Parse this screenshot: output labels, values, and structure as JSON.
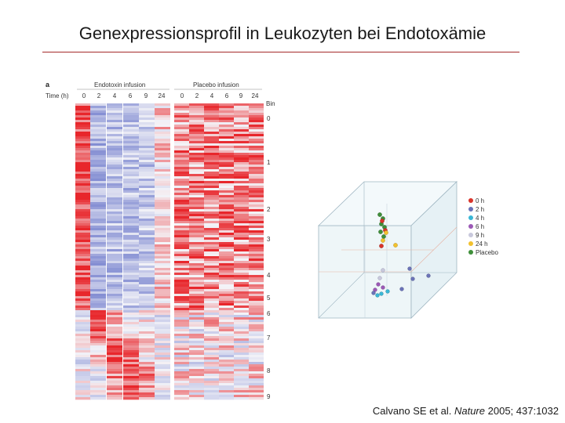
{
  "slide": {
    "title": "Genexpressionsprofil in Leukozyten bei Endotoxämie"
  },
  "heatmap": {
    "panel_label": "a",
    "time_label": "Time (h)",
    "groups": [
      {
        "name": "Endotoxin infusion",
        "times": [
          "0",
          "2",
          "4",
          "6",
          "9",
          "24"
        ]
      },
      {
        "name": "Placebo infusion",
        "times": [
          "0",
          "2",
          "4",
          "6",
          "9",
          "24"
        ]
      }
    ],
    "bin_label": "Bin",
    "bins": [
      "0",
      "1",
      "2",
      "3",
      "4",
      "5",
      "6",
      "7",
      "8",
      "9"
    ],
    "colors": {
      "high": "#e8262b",
      "low": "#7b86d0",
      "neutral": "#f4f4f8"
    }
  },
  "cube_plot": {
    "legend": [
      {
        "label": "0 h",
        "color": "#d9342b"
      },
      {
        "label": "2 h",
        "color": "#6b73b8"
      },
      {
        "label": "4 h",
        "color": "#39b7d6"
      },
      {
        "label": "6 h",
        "color": "#9b59b6"
      },
      {
        "label": "9 h",
        "color": "#c8c8dc"
      },
      {
        "label": "24 h",
        "color": "#f2c12e"
      },
      {
        "label": "Placebo",
        "color": "#3f8f3a"
      }
    ]
  },
  "citation": {
    "authors": "Calvano SE et al.",
    "journal": "Nature",
    "details": "2005; 437:1032"
  }
}
